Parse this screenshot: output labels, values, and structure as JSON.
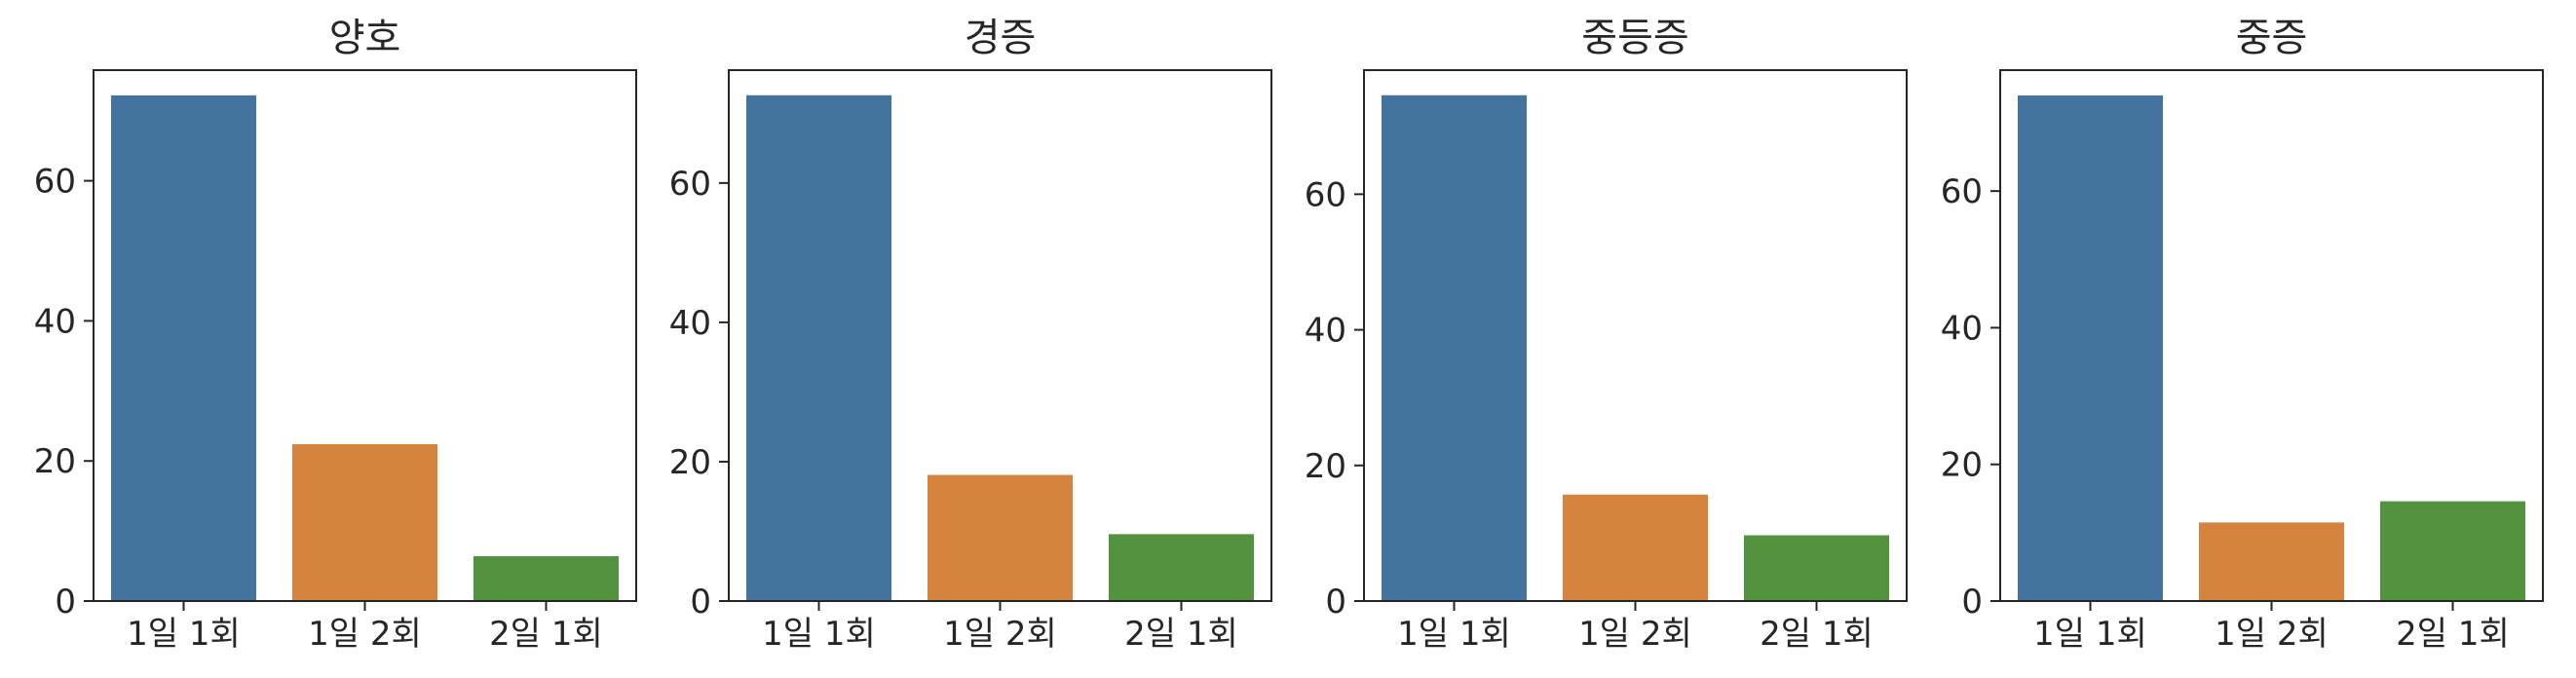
{
  "chart_data": [
    {
      "type": "bar",
      "title": "양호",
      "categories": [
        "1일 1회",
        "1일 2회",
        "2일 1회"
      ],
      "values": [
        72.2,
        22.4,
        6.4
      ],
      "ylim": [
        0,
        75.8
      ],
      "yticks": [
        0,
        20,
        40,
        60
      ],
      "colors": [
        "#4473a0",
        "#d5843f",
        "#53923f"
      ]
    },
    {
      "type": "bar",
      "title": "경증",
      "categories": [
        "1일 1회",
        "1일 2회",
        "2일 1회"
      ],
      "values": [
        72.6,
        18.1,
        9.6
      ],
      "ylim": [
        0,
        76.2
      ],
      "yticks": [
        0,
        20,
        40,
        60
      ],
      "colors": [
        "#4473a0",
        "#d5843f",
        "#53923f"
      ]
    },
    {
      "type": "bar",
      "title": "중등증",
      "categories": [
        "1일 1회",
        "1일 2회",
        "2일 1회"
      ],
      "values": [
        74.6,
        15.7,
        9.7
      ],
      "ylim": [
        0,
        78.3
      ],
      "yticks": [
        0,
        20,
        40,
        60
      ],
      "colors": [
        "#4473a0",
        "#d5843f",
        "#53923f"
      ]
    },
    {
      "type": "bar",
      "title": "중증",
      "categories": [
        "1일 1회",
        "1일 2회",
        "2일 1회"
      ],
      "values": [
        74.0,
        11.5,
        14.6
      ],
      "ylim": [
        0,
        77.7
      ],
      "yticks": [
        0,
        20,
        40,
        60
      ],
      "colors": [
        "#4473a0",
        "#d5843f",
        "#53923f"
      ]
    }
  ]
}
